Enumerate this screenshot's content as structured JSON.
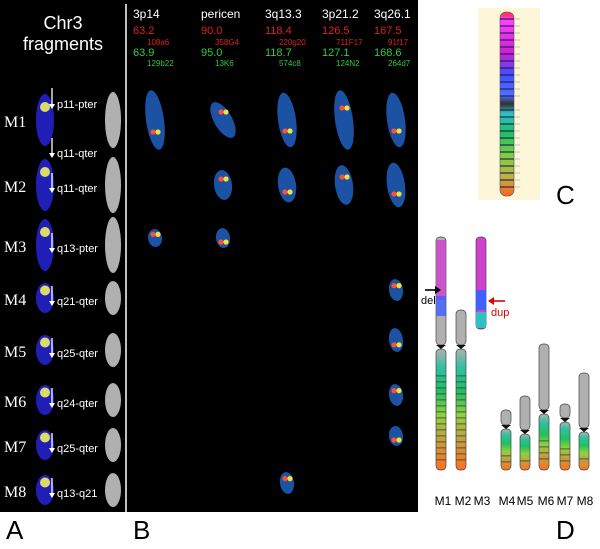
{
  "panel_a": {
    "title_line1": "Chr3",
    "title_line2": "fragments",
    "rows": [
      {
        "id": "M1",
        "labels": [
          "p11-pter",
          "q11-qter"
        ]
      },
      {
        "id": "M2",
        "labels": [
          "q11-qter"
        ]
      },
      {
        "id": "M3",
        "labels": [
          "q13-pter"
        ]
      },
      {
        "id": "M4",
        "labels": [
          "q21-qter"
        ]
      },
      {
        "id": "M5",
        "labels": [
          "q25-qter"
        ]
      },
      {
        "id": "M6",
        "labels": [
          "q24-qter"
        ]
      },
      {
        "id": "M7",
        "labels": [
          "q25-qter"
        ]
      },
      {
        "id": "M8",
        "labels": [
          "q13-q21"
        ]
      }
    ]
  },
  "panel_b": {
    "columns": [
      {
        "band": "3p14",
        "red_pos": "63.2",
        "red_clone": "108a6",
        "green_pos": "63.9",
        "green_clone": "129b22"
      },
      {
        "band": "pericen",
        "red_pos": "90.0",
        "red_clone": "358G4",
        "green_pos": "95.0",
        "green_clone": "13K6"
      },
      {
        "band": "3q13.3",
        "red_pos": "118.4",
        "red_clone": "220g20",
        "green_pos": "118.7",
        "green_clone": "574c8"
      },
      {
        "band": "3p21.2",
        "red_pos": "126.5",
        "red_clone": "711F17",
        "green_pos": "127.1",
        "green_clone": "124N2"
      },
      {
        "band": "3q26.1",
        "red_pos": "167.5",
        "red_clone": "91f17",
        "green_pos": "168.6",
        "green_clone": "264d7"
      }
    ]
  },
  "panel_d": {
    "del_label": "del",
    "dup_label": "dup",
    "chromosome_labels": [
      "M1",
      "M2",
      "M3",
      "M4",
      "M5",
      "M6",
      "M7",
      "M8"
    ]
  },
  "letters": {
    "a": "A",
    "b": "B",
    "c": "C",
    "d": "D"
  },
  "colors": {
    "red_text": "#e02020",
    "green_text": "#2ecc40",
    "del_arrow": "#000000",
    "dup_arrow": "#e00000",
    "chromosome_blue": "#2060c0"
  }
}
